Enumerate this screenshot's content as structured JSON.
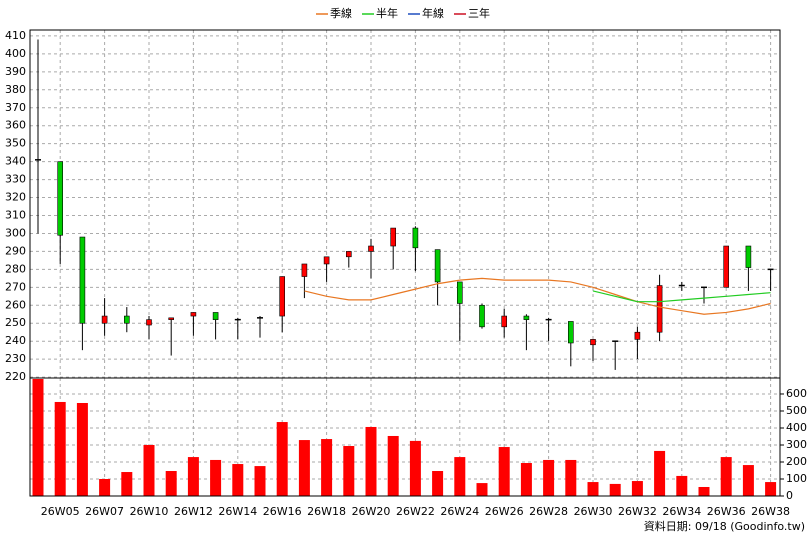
{
  "chart_data": {
    "type": "candlestick",
    "categories": [
      null,
      "26W05",
      null,
      "26W07",
      null,
      "26W10",
      null,
      "26W12",
      null,
      "26W14",
      null,
      "26W16",
      null,
      "26W18",
      null,
      "26W20",
      null,
      "26W22",
      null,
      "26W24",
      null,
      "26W26",
      null,
      "26W28",
      null,
      "26W30",
      null,
      "26W32",
      null,
      "26W34",
      null,
      "26W36",
      null,
      "26W38"
    ],
    "open": [
      341,
      340,
      298,
      250,
      254,
      249,
      252,
      254,
      256,
      252,
      253,
      254,
      276,
      283,
      287,
      290,
      293,
      303,
      291,
      273,
      260,
      248,
      254,
      252,
      251,
      238,
      240,
      241,
      245,
      271,
      270,
      270,
      293,
      280
    ],
    "high": [
      408,
      340,
      298,
      264,
      259,
      254,
      253,
      256,
      256,
      253,
      254,
      276,
      283,
      287,
      290,
      297,
      303,
      304,
      291,
      273,
      261,
      258,
      255,
      253,
      251,
      241,
      240,
      248,
      277,
      273,
      270,
      293,
      293,
      280
    ],
    "low": [
      300,
      283,
      235,
      243,
      245,
      241,
      232,
      243,
      241,
      241,
      242,
      245,
      264,
      273,
      281,
      275,
      280,
      279,
      260,
      240,
      247,
      242,
      235,
      240,
      226,
      229,
      224,
      230,
      240,
      268,
      261,
      270,
      268,
      268
    ],
    "close": [
      341,
      299,
      250,
      254,
      250,
      252,
      253,
      256,
      252,
      252,
      253,
      276,
      283,
      287,
      290,
      293,
      303,
      292,
      273,
      261,
      248,
      254,
      252,
      252,
      239,
      241,
      240,
      245,
      271,
      271,
      270,
      293,
      281,
      280
    ],
    "up_color": "#ff0000",
    "down_color": "#00cc00",
    "flat_color": "#000000",
    "series": [
      {
        "name": "季線",
        "color": "#e87722",
        "values": [
          null,
          null,
          null,
          null,
          null,
          null,
          null,
          null,
          null,
          null,
          null,
          null,
          268,
          265,
          263,
          263,
          266,
          269,
          272,
          274,
          275,
          274,
          274,
          274,
          273,
          270,
          266,
          262,
          259,
          257,
          255,
          256,
          258,
          261
        ]
      },
      {
        "name": "半年",
        "color": "#22cc22",
        "values": [
          null,
          null,
          null,
          null,
          null,
          null,
          null,
          null,
          null,
          null,
          null,
          null,
          null,
          null,
          null,
          null,
          null,
          null,
          null,
          null,
          null,
          null,
          null,
          null,
          null,
          268,
          265,
          262,
          262,
          263,
          264,
          265,
          266,
          267
        ]
      },
      {
        "name": "年線",
        "color": "#1f4fbf",
        "values": [
          null,
          null,
          null,
          null,
          null,
          null,
          null,
          null,
          null,
          null,
          null,
          null,
          null,
          null,
          null,
          null,
          null,
          null,
          null,
          null,
          null,
          null,
          null,
          null,
          null,
          null,
          null,
          null,
          null,
          null,
          null,
          null,
          null,
          null
        ]
      },
      {
        "name": "三年",
        "color": "#cc1122",
        "values": [
          null,
          null,
          null,
          null,
          null,
          null,
          null,
          null,
          null,
          null,
          null,
          null,
          null,
          null,
          null,
          null,
          null,
          null,
          null,
          null,
          null,
          null,
          null,
          null,
          null,
          null,
          null,
          null,
          null,
          null,
          null,
          null,
          null,
          null
        ]
      }
    ],
    "ylim": [
      219.5,
      413.3
    ],
    "yticks": [
      220,
      230,
      240,
      250,
      260,
      270,
      280,
      290,
      300,
      310,
      320,
      330,
      340,
      350,
      360,
      370,
      380,
      390,
      400,
      410
    ],
    "grid": true,
    "legend": "top",
    "volume": {
      "values": [
        688,
        553,
        547,
        100,
        141,
        300,
        147,
        229,
        212,
        188,
        176,
        435,
        329,
        335,
        294,
        406,
        353,
        324,
        147,
        229,
        76,
        288,
        194,
        212,
        212,
        82,
        71,
        88,
        265,
        118,
        53,
        229,
        182,
        82
      ],
      "color": "#ff0000",
      "ylim": [
        0,
        694
      ],
      "yticks": [
        0,
        100,
        200,
        300,
        400,
        500,
        600
      ]
    },
    "footnote": "資料日期: 09/18  (Goodinfo.tw)"
  }
}
